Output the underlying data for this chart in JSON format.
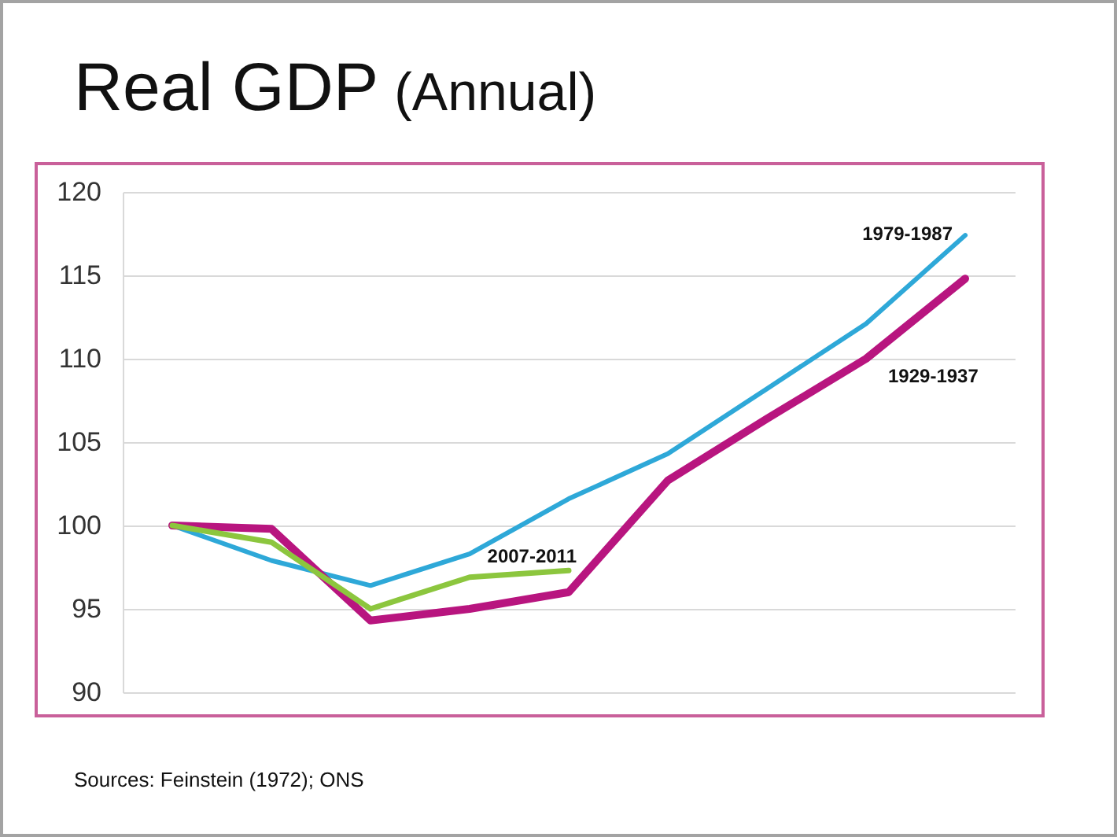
{
  "chart_data": {
    "type": "line",
    "title": "Real GDP",
    "subtitle": "(Annual)",
    "annotations": [
      "Sources: Feinstein (1972); ONS"
    ],
    "categories": [
      null,
      null,
      null,
      null,
      null,
      null,
      null,
      null,
      null
    ],
    "series": [
      {
        "name": "1979-1987",
        "color": "#2ea8d8",
        "values": [
          100,
          97.9,
          96.4,
          98.3,
          101.6,
          104.3,
          108.2,
          112.1,
          117.4
        ]
      },
      {
        "name": "1929-1937",
        "color": "#b8157f",
        "values": [
          100,
          99.8,
          94.3,
          95.0,
          96.0,
          102.7,
          106.4,
          110.0,
          114.8
        ]
      },
      {
        "name": "2007-2011",
        "color": "#8cc63e",
        "values": [
          100,
          99.0,
          95.0,
          96.9,
          97.3,
          null,
          null,
          null,
          null
        ]
      }
    ],
    "ylim": [
      90,
      120
    ],
    "yticks": [
      90,
      95,
      100,
      105,
      110,
      115,
      120
    ],
    "grid": "y",
    "tick_labels": "y"
  }
}
